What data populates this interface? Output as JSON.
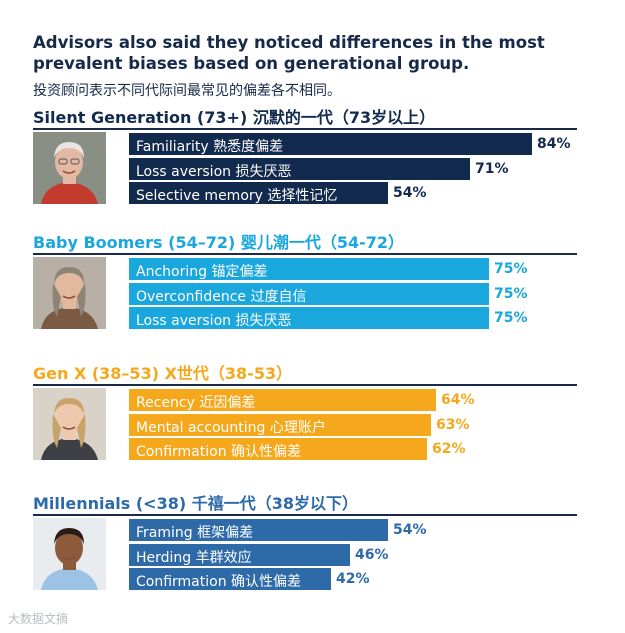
{
  "headline": "Advisors also said they noticed differences in the most prevalent biases based on generational group.",
  "subheadline": "投资顾问表示不同代际间最常见的偏差各不相同。",
  "watermark": "大数据文摘",
  "colors": {
    "silent": "#122a4d",
    "boomers": "#1aa7dd",
    "genx": "#f5a81c",
    "millennials": "#2e6aa8"
  },
  "chart_data": {
    "type": "bar",
    "orientation": "horizontal",
    "xlim": [
      0,
      100
    ],
    "groups": [
      {
        "key": "silent",
        "title": "Silent Generation (73+) 沉默的一代（73岁以上）",
        "color": "#122a4d",
        "photo": "person-photo",
        "bars": [
          {
            "label": "Familiarity  熟悉度偏差",
            "value": 84,
            "pct_label": "84%"
          },
          {
            "label": "Loss aversion  损失厌恶",
            "value": 71,
            "pct_label": "71%"
          },
          {
            "label": "Selective memory 选择性记忆",
            "value": 54,
            "pct_label": "54%"
          }
        ]
      },
      {
        "key": "boomers",
        "title": "Baby Boomers (54–72) 婴儿潮一代（54-72）",
        "color": "#1aa7dd",
        "photo": "person-photo",
        "bars": [
          {
            "label": "Anchoring  锚定偏差",
            "value": 75,
            "pct_label": "75%"
          },
          {
            "label": "Overconfidence  过度自信",
            "value": 75,
            "pct_label": "75%"
          },
          {
            "label": "Loss aversion  损失厌恶",
            "value": 75,
            "pct_label": "75%"
          }
        ]
      },
      {
        "key": "genx",
        "title": "Gen X (38–53) X世代（38-53）",
        "color": "#f5a81c",
        "photo": "person-photo",
        "bars": [
          {
            "label": "Recency  近因偏差",
            "value": 64,
            "pct_label": "64%"
          },
          {
            "label": "Mental accounting  心理账户",
            "value": 63,
            "pct_label": "63%"
          },
          {
            "label": "Confirmation  确认性偏差",
            "value": 62,
            "pct_label": "62%"
          }
        ]
      },
      {
        "key": "millennials",
        "title": "Millennials (<38) 千禧一代（38岁以下）",
        "color": "#2e6aa8",
        "photo": "person-photo",
        "bars": [
          {
            "label": "Framing  框架偏差",
            "value": 54,
            "pct_label": "54%"
          },
          {
            "label": "Herding  羊群效应",
            "value": 46,
            "pct_label": "46%"
          },
          {
            "label": "Confirmation 确认性偏差",
            "value": 42,
            "pct_label": "42%"
          }
        ]
      }
    ]
  }
}
